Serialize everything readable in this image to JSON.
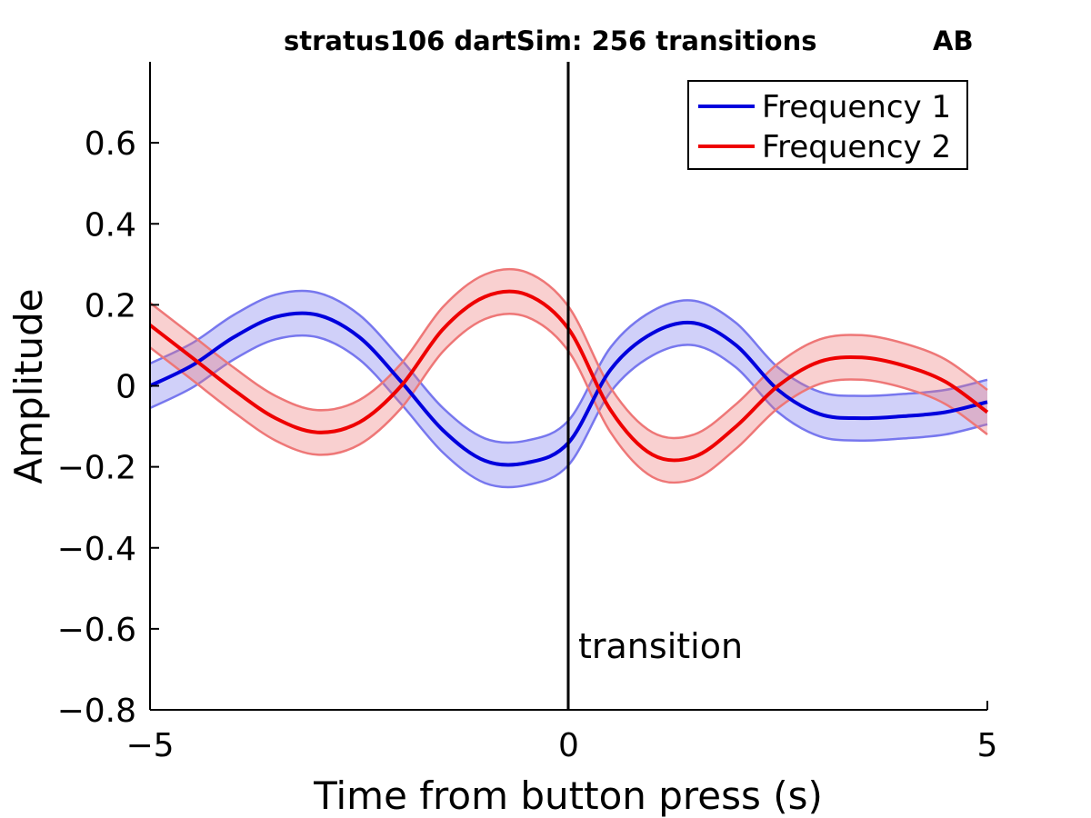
{
  "chart_data": {
    "type": "line",
    "title": "stratus106 dartSim: 256 transitions",
    "corner_label": "AB",
    "xlabel": "Time from button press (s)",
    "ylabel": "Amplitude",
    "xlim": [
      -5,
      5
    ],
    "ylim": [
      -0.8,
      0.8
    ],
    "x_ticks": [
      -5,
      0,
      5
    ],
    "x_tick_labels": [
      "−5",
      "0",
      "5"
    ],
    "y_ticks": [
      -0.8,
      -0.6,
      -0.4,
      -0.2,
      0,
      0.2,
      0.4,
      0.6
    ],
    "y_tick_labels": [
      "−0.8",
      "−0.6",
      "−0.4",
      "−0.2",
      "0",
      "0.2",
      "0.4",
      "0.6"
    ],
    "grid": false,
    "legend_position": "top-right",
    "vline": {
      "x": 0,
      "label": "transition"
    },
    "x": [
      -5,
      -4.5,
      -4,
      -3.5,
      -3,
      -2.5,
      -2,
      -1.5,
      -1,
      -0.5,
      0,
      0.5,
      1,
      1.5,
      2,
      2.5,
      3,
      3.5,
      4,
      4.5,
      5
    ],
    "series": [
      {
        "name": "Frequency 1",
        "color": "#0000dd",
        "band_color": "#7777ee",
        "values": [
          0.0,
          0.05,
          0.12,
          0.17,
          0.175,
          0.12,
          0.01,
          -0.11,
          -0.185,
          -0.19,
          -0.14,
          0.04,
          0.13,
          0.155,
          0.1,
          -0.01,
          -0.07,
          -0.08,
          -0.075,
          -0.065,
          -0.04
        ],
        "lower": [
          -0.055,
          -0.005,
          0.065,
          0.115,
          0.12,
          0.065,
          -0.045,
          -0.165,
          -0.24,
          -0.245,
          -0.195,
          -0.015,
          0.075,
          0.1,
          0.045,
          -0.065,
          -0.125,
          -0.135,
          -0.13,
          -0.12,
          -0.095
        ],
        "upper": [
          0.055,
          0.105,
          0.175,
          0.225,
          0.23,
          0.175,
          0.065,
          -0.055,
          -0.13,
          -0.135,
          -0.085,
          0.095,
          0.185,
          0.21,
          0.155,
          0.045,
          -0.015,
          -0.025,
          -0.02,
          -0.01,
          0.015
        ]
      },
      {
        "name": "Frequency 2",
        "color": "#ee0000",
        "band_color": "#ee7777",
        "values": [
          0.15,
          0.07,
          -0.01,
          -0.08,
          -0.115,
          -0.09,
          0.0,
          0.14,
          0.22,
          0.225,
          0.14,
          -0.06,
          -0.17,
          -0.175,
          -0.1,
          0.0,
          0.06,
          0.07,
          0.05,
          0.01,
          -0.065
        ],
        "lower": [
          0.095,
          0.015,
          -0.065,
          -0.135,
          -0.17,
          -0.145,
          -0.055,
          0.085,
          0.165,
          0.17,
          0.085,
          -0.115,
          -0.225,
          -0.23,
          -0.155,
          -0.055,
          0.005,
          0.015,
          -0.005,
          -0.045,
          -0.12
        ],
        "upper": [
          0.205,
          0.125,
          0.045,
          -0.025,
          -0.06,
          -0.035,
          0.055,
          0.195,
          0.275,
          0.28,
          0.195,
          -0.005,
          -0.115,
          -0.12,
          -0.045,
          0.055,
          0.115,
          0.125,
          0.105,
          0.065,
          -0.01
        ]
      }
    ]
  }
}
